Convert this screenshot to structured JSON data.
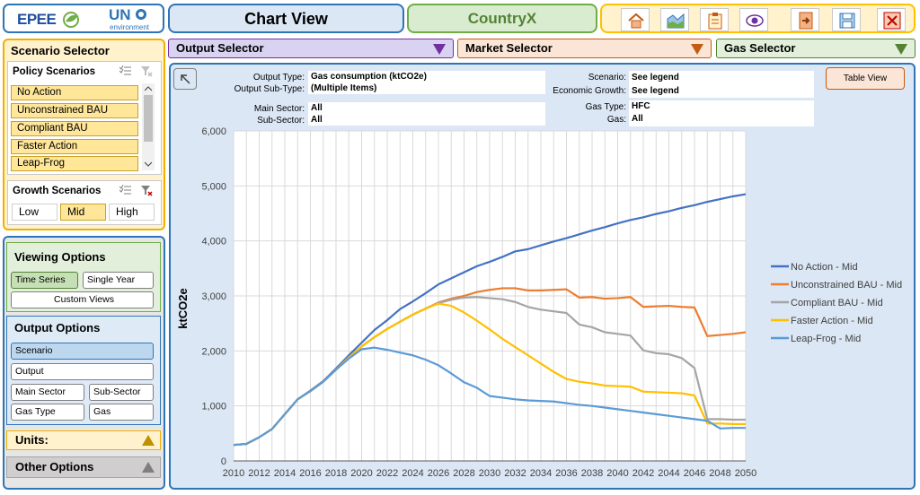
{
  "header": {
    "logo_epee": "EPEE",
    "logo_un": "UN",
    "logo_env": "environment",
    "title": "Chart View",
    "country": "CountryX",
    "toolbar_icons": [
      "home-icon",
      "area-chart-icon",
      "clipboard-icon",
      "eye-icon",
      "export-icon",
      "save-icon",
      "close-icon"
    ]
  },
  "selectors": {
    "output": "Output Selector",
    "market": "Market Selector",
    "gas": "Gas Selector"
  },
  "scenario_selector": {
    "title": "Scenario Selector",
    "policy_title": "Policy Scenarios",
    "policy_items": [
      "No Action",
      "Unconstrained BAU",
      "Compliant BAU",
      "Faster Action",
      "Leap-Frog"
    ],
    "growth_title": "Growth Scenarios",
    "growth_items": [
      "Low",
      "Mid",
      "High"
    ],
    "growth_selected": "Mid"
  },
  "viewing_options": {
    "title": "Viewing Options",
    "time_series": "Time Series",
    "single_year": "Single Year",
    "custom_views": "Custom Views"
  },
  "output_options": {
    "title": "Output Options",
    "scenario": "Scenario",
    "output": "Output",
    "main_sector": "Main Sector",
    "sub_sector": "Sub-Sector",
    "gas_type": "Gas Type",
    "gas": "Gas"
  },
  "units_label": "Units:",
  "other_options_label": "Other Options",
  "info": {
    "output_type_label": "Output Type:",
    "output_type_value": "Gas consumption (ktCO2e)",
    "output_subtype_label": "Output Sub-Type:",
    "output_subtype_value": "(Multiple Items)",
    "main_sector_label": "Main Sector:",
    "main_sector_value": "All",
    "sub_sector_label": "Sub-Sector:",
    "sub_sector_value": "All",
    "scenario_label": "Scenario:",
    "scenario_value": "See legend",
    "growth_label": "Economic Growth:",
    "growth_value": "See legend",
    "gas_type_label": "Gas Type:",
    "gas_type_value": "HFC",
    "gas_label": "Gas:",
    "gas_value": "All"
  },
  "table_view_label": "Table View",
  "chart_data": {
    "type": "line",
    "ylabel": "ktCO2e",
    "ylim": [
      0,
      6000
    ],
    "y_ticks": [
      "0",
      "1,000",
      "2,000",
      "3,000",
      "4,000",
      "5,000",
      "6,000"
    ],
    "x": [
      2010,
      2011,
      2012,
      2013,
      2014,
      2015,
      2016,
      2017,
      2018,
      2019,
      2020,
      2021,
      2022,
      2023,
      2024,
      2025,
      2026,
      2027,
      2028,
      2029,
      2030,
      2031,
      2032,
      2033,
      2034,
      2035,
      2036,
      2037,
      2038,
      2039,
      2040,
      2041,
      2042,
      2043,
      2044,
      2045,
      2046,
      2047,
      2048,
      2049,
      2050
    ],
    "x_tick_labels": [
      "2010",
      "2012",
      "2014",
      "2016",
      "2018",
      "2020",
      "2022",
      "2024",
      "2026",
      "2028",
      "2030",
      "2032",
      "2034",
      "2036",
      "2038",
      "2040",
      "2042",
      "2044",
      "2046",
      "2048",
      "2050"
    ],
    "grid": true,
    "legend_position": "right",
    "series": [
      {
        "name": "No Action - Mid",
        "color": "#4472c4",
        "values": [
          290,
          310,
          430,
          580,
          850,
          1120,
          1280,
          1450,
          1680,
          1920,
          2150,
          2380,
          2560,
          2760,
          2900,
          3050,
          3210,
          3320,
          3430,
          3540,
          3620,
          3710,
          3810,
          3850,
          3920,
          3990,
          4050,
          4120,
          4190,
          4250,
          4320,
          4380,
          4430,
          4490,
          4540,
          4600,
          4650,
          4710,
          4760,
          4810,
          4850
        ]
      },
      {
        "name": "Unconstrained BAU - Mid",
        "color": "#ed7d31",
        "values": [
          290,
          310,
          430,
          580,
          850,
          1120,
          1270,
          1440,
          1660,
          1880,
          2080,
          2250,
          2400,
          2530,
          2660,
          2770,
          2880,
          2950,
          3000,
          3070,
          3110,
          3140,
          3140,
          3100,
          3100,
          3110,
          3120,
          2970,
          2980,
          2950,
          2960,
          2980,
          2800,
          2810,
          2820,
          2800,
          2790,
          2270,
          2290,
          2310,
          2340
        ]
      },
      {
        "name": "Compliant BAU - Mid",
        "color": "#a5a5a5",
        "values": [
          290,
          310,
          430,
          580,
          850,
          1120,
          1270,
          1440,
          1660,
          1880,
          2080,
          2250,
          2400,
          2530,
          2660,
          2770,
          2870,
          2930,
          2970,
          2980,
          2960,
          2940,
          2890,
          2800,
          2750,
          2720,
          2690,
          2480,
          2430,
          2340,
          2310,
          2280,
          2010,
          1960,
          1940,
          1870,
          1690,
          760,
          760,
          750,
          750
        ]
      },
      {
        "name": "Faster Action - Mid",
        "color": "#ffc000",
        "values": [
          290,
          310,
          430,
          580,
          850,
          1120,
          1270,
          1440,
          1660,
          1880,
          2080,
          2250,
          2400,
          2530,
          2660,
          2770,
          2860,
          2820,
          2700,
          2550,
          2390,
          2220,
          2070,
          1920,
          1770,
          1620,
          1490,
          1440,
          1410,
          1370,
          1360,
          1350,
          1260,
          1250,
          1240,
          1230,
          1190,
          680,
          680,
          670,
          670
        ]
      },
      {
        "name": "Leap-Frog - Mid",
        "color": "#5b9bd5",
        "values": [
          290,
          310,
          430,
          580,
          850,
          1120,
          1270,
          1440,
          1660,
          1860,
          2030,
          2060,
          2020,
          1970,
          1920,
          1840,
          1740,
          1590,
          1430,
          1330,
          1180,
          1150,
          1120,
          1100,
          1090,
          1080,
          1050,
          1020,
          1000,
          970,
          940,
          910,
          880,
          850,
          820,
          790,
          760,
          730,
          590,
          600,
          600
        ]
      }
    ]
  }
}
